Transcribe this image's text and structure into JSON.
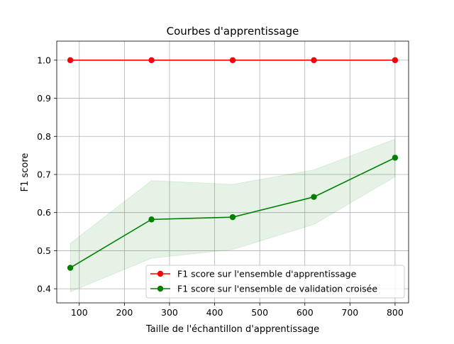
{
  "chart_data": {
    "type": "line",
    "title": "Courbes d'apprentissage",
    "xlabel": "Taille de l'échantillon d'apprentissage",
    "ylabel": "F1 score",
    "xlim": [
      50,
      830
    ],
    "ylim": [
      0.363,
      1.05
    ],
    "xticks": [
      100,
      200,
      300,
      400,
      500,
      600,
      700,
      800
    ],
    "yticks": [
      0.4,
      0.5,
      0.6,
      0.7,
      0.8,
      0.9,
      1.0
    ],
    "grid": true,
    "legend_position": "bottom-right",
    "x": [
      80,
      260,
      440,
      620,
      800
    ],
    "series": [
      {
        "name": "F1 score sur l'ensemble d'apprentissage",
        "color": "#ff0000",
        "marker": "circle",
        "values": [
          1.0,
          1.0,
          1.0,
          1.0,
          1.0
        ],
        "band_lower": [
          1.0,
          1.0,
          1.0,
          1.0,
          1.0
        ],
        "band_upper": [
          1.0,
          1.0,
          1.0,
          1.0,
          1.0
        ]
      },
      {
        "name": "F1 score sur l'ensemble de validation croisée",
        "color": "#008000",
        "band_color": "#008000",
        "marker": "circle",
        "values": [
          0.455,
          0.582,
          0.588,
          0.641,
          0.744
        ],
        "band_lower": [
          0.392,
          0.48,
          0.503,
          0.569,
          0.694
        ],
        "band_upper": [
          0.519,
          0.684,
          0.674,
          0.712,
          0.793
        ]
      }
    ]
  }
}
